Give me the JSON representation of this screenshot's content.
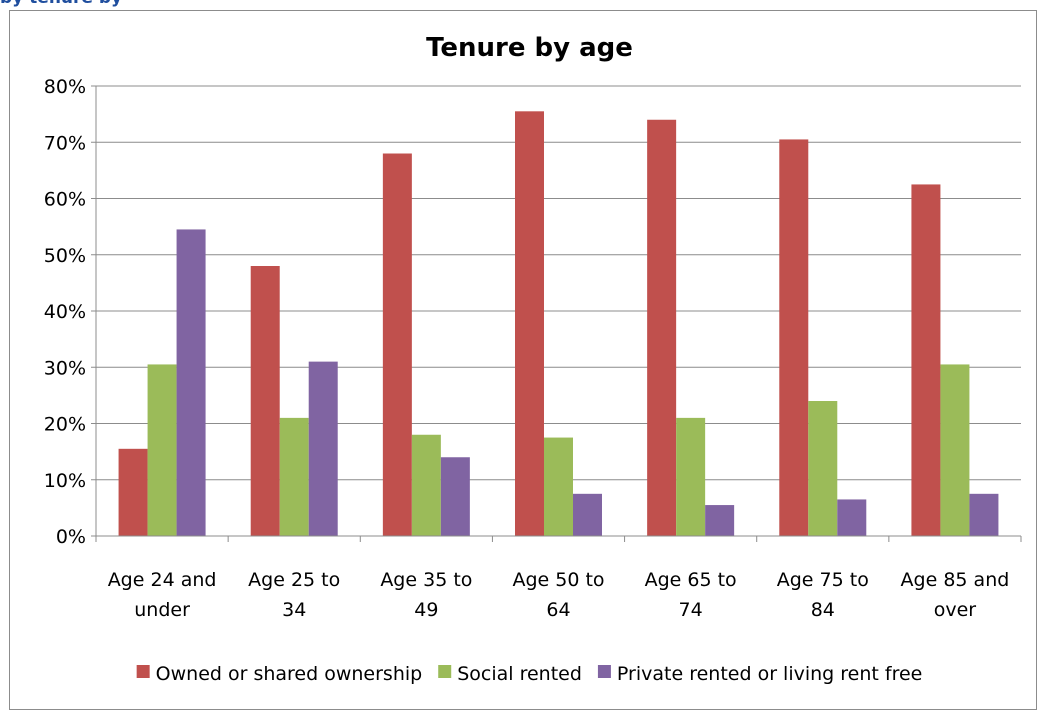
{
  "page": {
    "cropped_header_text": "by tenure by"
  },
  "chart_data": {
    "type": "bar",
    "title": "Tenure by age",
    "xlabel": "",
    "ylabel": "",
    "categories": [
      [
        "Age 24 and",
        "under"
      ],
      [
        "Age 25 to",
        "34"
      ],
      [
        "Age 35 to",
        "49"
      ],
      [
        "Age 50 to",
        "64"
      ],
      [
        "Age 65 to",
        "74"
      ],
      [
        "Age 75 to",
        "84"
      ],
      [
        "Age 85 and",
        "over"
      ]
    ],
    "series": [
      {
        "name": "Owned or shared ownership",
        "color": "#c0504d",
        "values": [
          15.5,
          48,
          68,
          75.5,
          74,
          70.5,
          62.5
        ]
      },
      {
        "name": "Social rented",
        "color": "#9bbb59",
        "values": [
          30.5,
          21,
          18,
          17.5,
          21,
          24,
          30.5
        ]
      },
      {
        "name": "Private rented or living rent free",
        "color": "#8064a2",
        "values": [
          54.5,
          31,
          14,
          7.5,
          5.5,
          6.5,
          7.5
        ]
      }
    ],
    "ylim": [
      0,
      80
    ],
    "yticks": [
      0,
      10,
      20,
      30,
      40,
      50,
      60,
      70,
      80
    ],
    "ytick_labels": [
      "0%",
      "10%",
      "20%",
      "30%",
      "40%",
      "50%",
      "60%",
      "70%",
      "80%"
    ],
    "grid": true,
    "legend_position": "bottom"
  }
}
